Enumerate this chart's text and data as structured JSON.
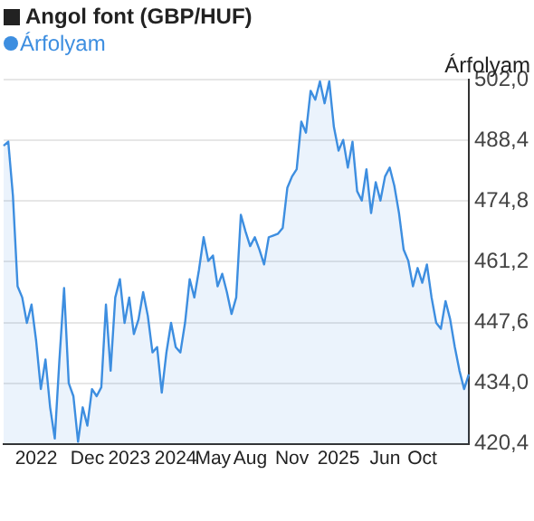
{
  "chart_data": {
    "type": "area",
    "title": "Angol font (GBP/HUF)",
    "ylabel": "Árfolyam",
    "legend": "top left",
    "grid": "y",
    "marker": "none",
    "categories": [
      null,
      null,
      null,
      null,
      null,
      null,
      null,
      "2022",
      null,
      null,
      null,
      null,
      null,
      null,
      null,
      null,
      null,
      null,
      "Dec",
      null,
      null,
      null,
      null,
      null,
      null,
      null,
      null,
      "2023",
      null,
      null,
      null,
      null,
      null,
      null,
      null,
      null,
      null,
      "2024",
      null,
      null,
      null,
      null,
      null,
      null,
      null,
      "May",
      null,
      null,
      null,
      null,
      null,
      null,
      null,
      "Aug",
      null,
      null,
      null,
      null,
      null,
      null,
      null,
      null,
      "Nov",
      null,
      null,
      null,
      null,
      null,
      null,
      null,
      null,
      null,
      "2025",
      null,
      null,
      null,
      null,
      null,
      null,
      null,
      null,
      null,
      "Jun",
      null,
      null,
      null,
      null,
      null,
      null,
      null,
      "Oct",
      null,
      null,
      null,
      null,
      null,
      null,
      null,
      null,
      null,
      null
    ],
    "series": [
      {
        "name": "Árfolyam",
        "color": "#3d8ee0",
        "values": [
          487.2,
          488.1,
          476,
          455.7,
          453.2,
          447.5,
          451.6,
          443.4,
          432.7,
          439.3,
          428.6,
          421.6,
          439.3,
          455.3,
          434,
          431.1,
          420.9,
          428.6,
          424.5,
          432.7,
          431.1,
          433.1,
          451.6,
          436.8,
          453.2,
          457.3,
          447.5,
          453.2,
          445,
          448.3,
          454.4,
          449.1,
          440.9,
          442.1,
          431.9,
          440.9,
          447.5,
          442.1,
          440.9,
          447.5,
          457.3,
          453.2,
          459.4,
          466.7,
          461.4,
          462.6,
          455.7,
          458.5,
          454.4,
          449.5,
          453.2,
          471.7,
          468,
          464.7,
          466.7,
          463.9,
          460.6,
          466.7,
          467.1,
          467.5,
          468.8,
          477.8,
          480.3,
          481.9,
          492.6,
          490.1,
          499.5,
          497.5,
          501.6,
          496.7,
          501.6,
          491.4,
          486.1,
          488.5,
          482.3,
          488.1,
          477,
          474.9,
          481.9,
          472.1,
          479,
          474.9,
          480.3,
          482.3,
          478.2,
          472.1,
          463.9,
          461.4,
          455.7,
          459.8,
          456.5,
          460.6,
          453.2,
          447.5,
          446.2,
          452.4,
          448.3,
          442.1,
          436.8,
          432.7,
          436
        ]
      }
    ],
    "ylim": [
      420.4,
      502
    ],
    "yticks": [
      {
        "value": 420.4,
        "label": "420,4"
      },
      {
        "value": 434,
        "label": "434,0"
      },
      {
        "value": 447.6,
        "label": "447,6"
      },
      {
        "value": 461.2,
        "label": "461,2"
      },
      {
        "value": 474.8,
        "label": "474,8"
      },
      {
        "value": 488.4,
        "label": "488,4"
      },
      {
        "value": 502,
        "label": "502,0"
      }
    ]
  }
}
